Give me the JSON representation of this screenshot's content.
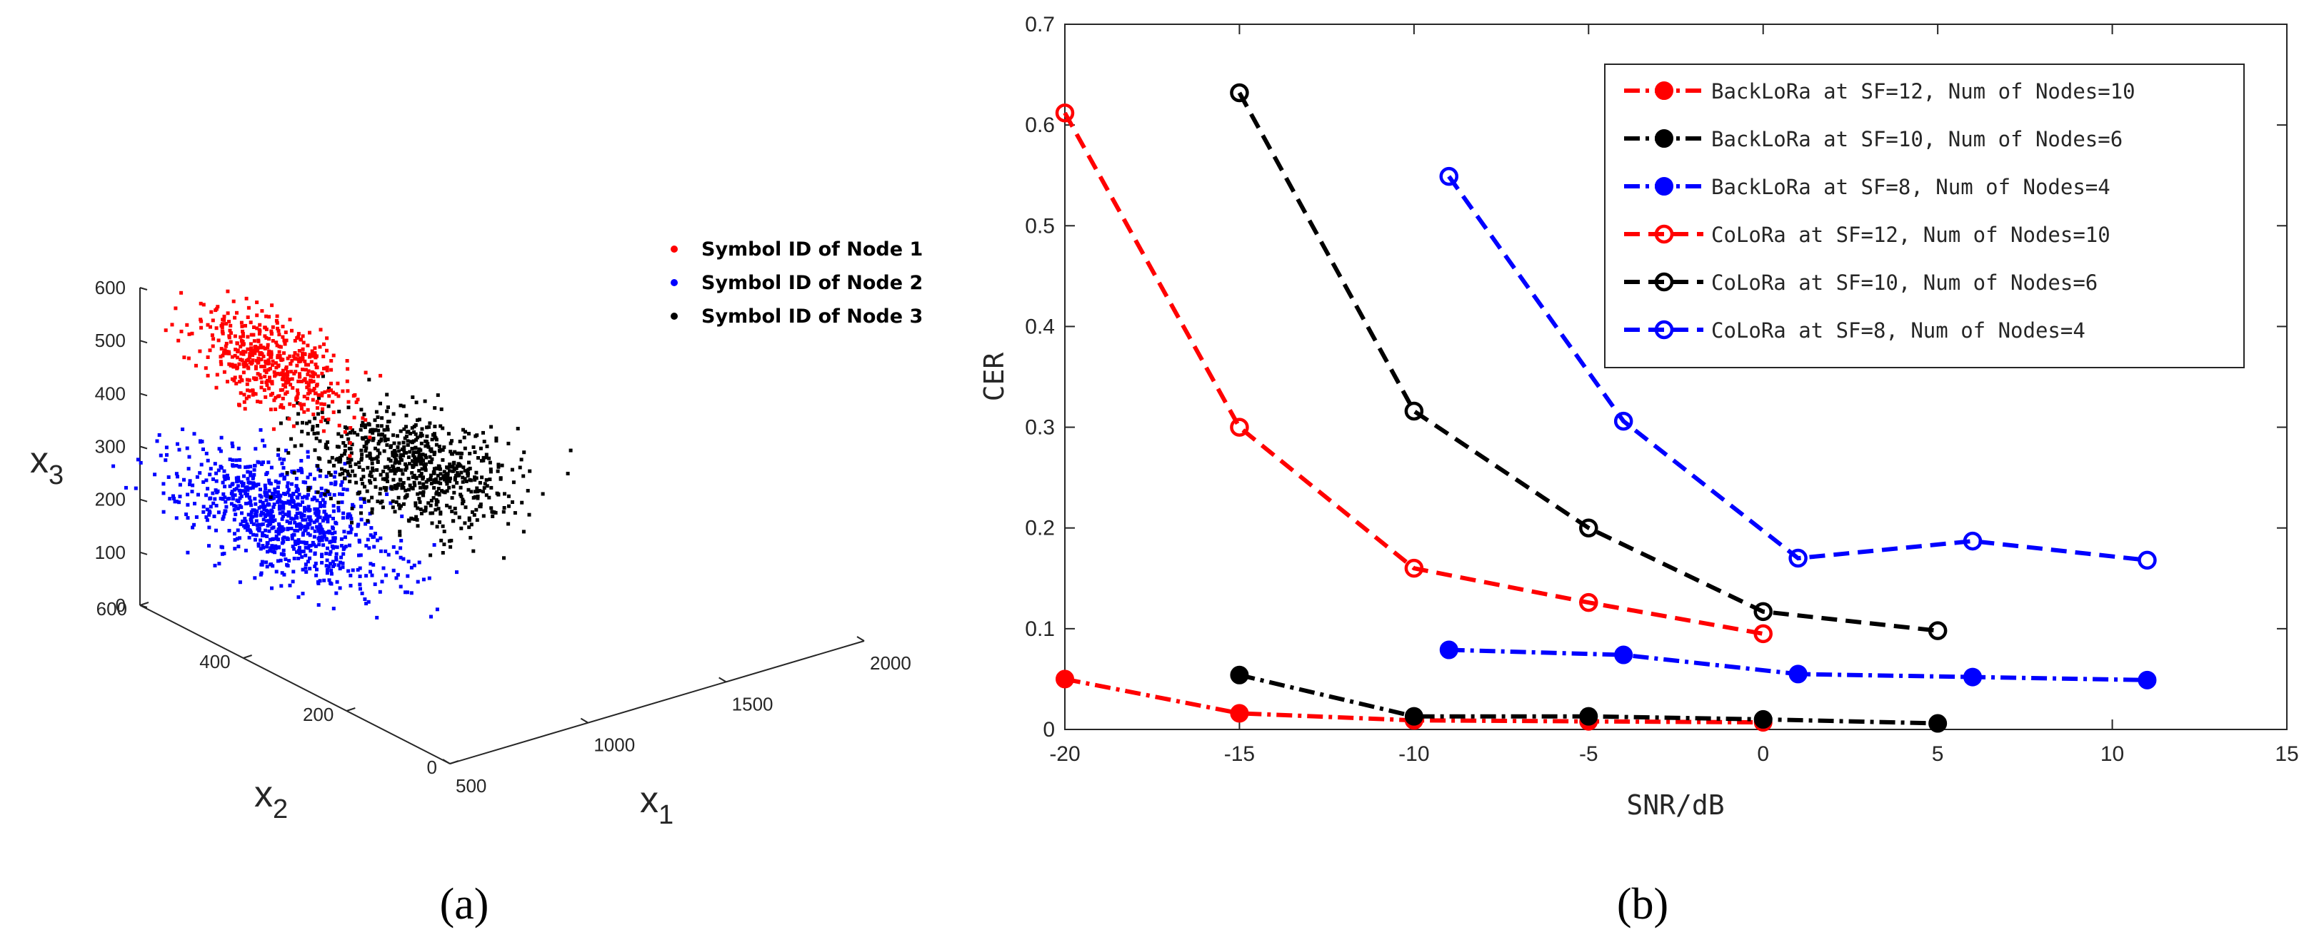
{
  "colors": {
    "red": "#ff0000",
    "blue": "#0000ff",
    "black": "#000000",
    "axis": "#262626",
    "grid": "#bfbfbf"
  },
  "chart_data": [
    {
      "type": "scatter3d",
      "panel_label": "(a)",
      "axes": {
        "x1": {
          "label": "x",
          "sub": "1",
          "ticks": [
            500,
            1000,
            1500,
            2000
          ]
        },
        "x2": {
          "label": "x",
          "sub": "2",
          "ticks": [
            0,
            200,
            400,
            600
          ]
        },
        "x3": {
          "label": "x",
          "sub": "3",
          "ticks": [
            0,
            100,
            200,
            300,
            400,
            500,
            600
          ]
        }
      },
      "series": [
        {
          "name": "Symbol ID of Node 1",
          "color": "#ff0000",
          "n": 520,
          "mean": {
            "x1": 700,
            "x2": 450,
            "x3": 500
          },
          "sd": {
            "x1": 60,
            "x2": 70,
            "x3": 35
          }
        },
        {
          "name": "Symbol ID of Node 2",
          "color": "#0000ff",
          "n": 900,
          "mean": {
            "x1": 700,
            "x2": 430,
            "x3": 220
          },
          "sd": {
            "x1": 90,
            "x2": 90,
            "x3": 40
          }
        },
        {
          "name": "Symbol ID of Node 3",
          "color": "#000000",
          "n": 750,
          "mean": {
            "x1": 1150,
            "x2": 420,
            "x3": 250
          },
          "sd": {
            "x1": 110,
            "x2": 80,
            "x3": 35
          }
        }
      ]
    },
    {
      "type": "line",
      "panel_label": "(b)",
      "xlabel": "SNR/dB",
      "ylabel": "CER",
      "xlim": [
        -20,
        15
      ],
      "ylim": [
        0,
        0.7
      ],
      "xticks": [
        -20,
        -15,
        -10,
        -5,
        0,
        5,
        10,
        15
      ],
      "yticks": [
        0,
        0.1,
        0.2,
        0.3,
        0.4,
        0.5,
        0.6,
        0.7
      ],
      "series": [
        {
          "name": "BackLoRa at SF=12, Num of Nodes=10",
          "color": "#ff0000",
          "marker": "filled",
          "x": [
            -20,
            -15,
            -10,
            -5,
            0
          ],
          "y": [
            0.05,
            0.016,
            0.009,
            0.008,
            0.007
          ]
        },
        {
          "name": "BackLoRa at SF=10, Num of Nodes=6",
          "color": "#000000",
          "marker": "filled",
          "x": [
            -15,
            -10,
            -5,
            0,
            5
          ],
          "y": [
            0.054,
            0.013,
            0.013,
            0.01,
            0.006
          ]
        },
        {
          "name": "BackLoRa at SF=8, Num of Nodes=4",
          "color": "#0000ff",
          "marker": "filled",
          "x": [
            -9,
            -4,
            1,
            6,
            11
          ],
          "y": [
            0.079,
            0.074,
            0.055,
            0.052,
            0.049
          ]
        },
        {
          "name": "CoLoRa at SF=12, Num of Nodes=10",
          "color": "#ff0000",
          "marker": "open",
          "x": [
            -20,
            -15,
            -10,
            -5,
            0
          ],
          "y": [
            0.612,
            0.3,
            0.16,
            0.126,
            0.095
          ]
        },
        {
          "name": "CoLoRa at SF=10, Num of Nodes=6",
          "color": "#000000",
          "marker": "open",
          "x": [
            -15,
            -10,
            -5,
            0,
            5
          ],
          "y": [
            0.632,
            0.316,
            0.2,
            0.117,
            0.098
          ]
        },
        {
          "name": "CoLoRa at SF=8, Num of Nodes=4",
          "color": "#0000ff",
          "marker": "open",
          "x": [
            -9,
            -4,
            1,
            6,
            11
          ],
          "y": [
            0.549,
            0.306,
            0.17,
            0.187,
            0.168
          ]
        }
      ]
    }
  ]
}
